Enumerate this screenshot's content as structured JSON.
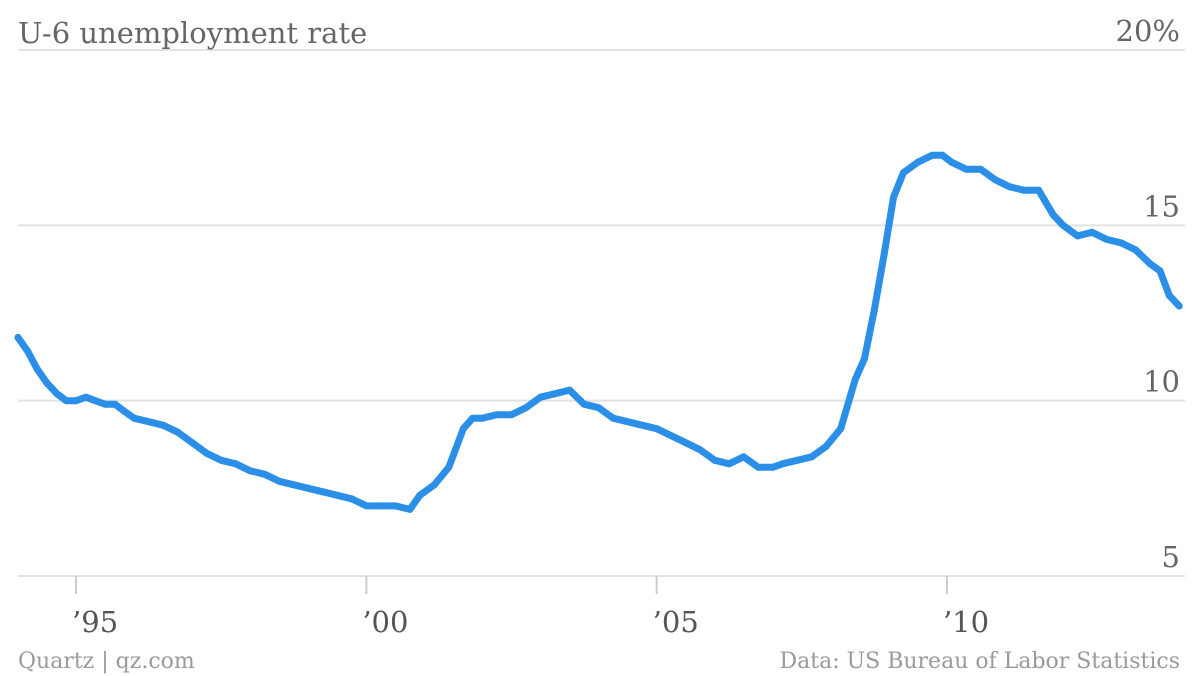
{
  "colors": {
    "line": "#2b8fe8",
    "grid": "#e2e2e2",
    "text": "#666666"
  },
  "chart_data": {
    "type": "line",
    "title": "U-6 unemployment rate",
    "xlabel": "",
    "ylabel": "",
    "ylim": [
      5,
      20
    ],
    "xlim": [
      1994.0,
      2014.1
    ],
    "y_ticks": [
      {
        "value": 20,
        "label": "20%"
      },
      {
        "value": 15,
        "label": "15"
      },
      {
        "value": 10,
        "label": "10"
      },
      {
        "value": 5,
        "label": "5"
      }
    ],
    "x_ticks": [
      {
        "value": 1995,
        "label": "’95"
      },
      {
        "value": 2000,
        "label": "’00"
      },
      {
        "value": 2005,
        "label": "’05"
      },
      {
        "value": 2010,
        "label": "’10"
      }
    ],
    "grid": true,
    "legend": "none",
    "series": [
      {
        "x": [
          1994.0,
          1994.17,
          1994.33,
          1994.5,
          1994.67,
          1994.83,
          1995.0,
          1995.17,
          1995.33,
          1995.5,
          1995.67,
          1995.83,
          1996.0,
          1996.25,
          1996.5,
          1996.75,
          1997.0,
          1997.25,
          1997.5,
          1997.75,
          1998.0,
          1998.25,
          1998.5,
          1998.75,
          1999.0,
          1999.25,
          1999.5,
          1999.75,
          2000.0,
          2000.25,
          2000.5,
          2000.75,
          2000.92,
          2001.17,
          2001.42,
          2001.67,
          2001.83,
          2002.0,
          2002.25,
          2002.5,
          2002.75,
          2003.0,
          2003.25,
          2003.5,
          2003.75,
          2004.0,
          2004.25,
          2004.5,
          2004.75,
          2005.0,
          2005.25,
          2005.5,
          2005.75,
          2006.0,
          2006.25,
          2006.5,
          2006.75,
          2007.0,
          2007.17,
          2007.42,
          2007.67,
          2007.92,
          2008.17,
          2008.42,
          2008.58,
          2008.75,
          2008.92,
          2009.08,
          2009.25,
          2009.5,
          2009.75,
          2009.92,
          2010.08,
          2010.33,
          2010.58,
          2010.83,
          2011.08,
          2011.33,
          2011.58,
          2011.83,
          2012.0,
          2012.25,
          2012.5,
          2012.75,
          2013.0,
          2013.25,
          2013.5,
          2013.67,
          2013.83,
          2014.0
        ],
        "values": [
          11.8,
          11.4,
          10.9,
          10.5,
          10.2,
          10.0,
          10.0,
          10.1,
          10.0,
          9.9,
          9.9,
          9.7,
          9.5,
          9.4,
          9.3,
          9.1,
          8.8,
          8.5,
          8.3,
          8.2,
          8.0,
          7.9,
          7.7,
          7.6,
          7.5,
          7.4,
          7.3,
          7.2,
          7.0,
          7.0,
          7.0,
          6.9,
          7.3,
          7.6,
          8.1,
          9.2,
          9.5,
          9.5,
          9.6,
          9.6,
          9.8,
          10.1,
          10.2,
          10.3,
          9.9,
          9.8,
          9.5,
          9.4,
          9.3,
          9.2,
          9.0,
          8.8,
          8.6,
          8.3,
          8.2,
          8.4,
          8.1,
          8.1,
          8.2,
          8.3,
          8.4,
          8.7,
          9.2,
          10.6,
          11.2,
          12.6,
          14.2,
          15.8,
          16.5,
          16.8,
          17.0,
          17.0,
          16.8,
          16.6,
          16.6,
          16.3,
          16.1,
          16.0,
          16.0,
          15.3,
          15.0,
          14.7,
          14.8,
          14.6,
          14.5,
          14.3,
          13.9,
          13.7,
          13.0,
          12.7
        ]
      }
    ]
  },
  "footer": {
    "source_left": "Quartz | qz.com",
    "source_right": "Data: US Bureau of Labor Statistics"
  }
}
